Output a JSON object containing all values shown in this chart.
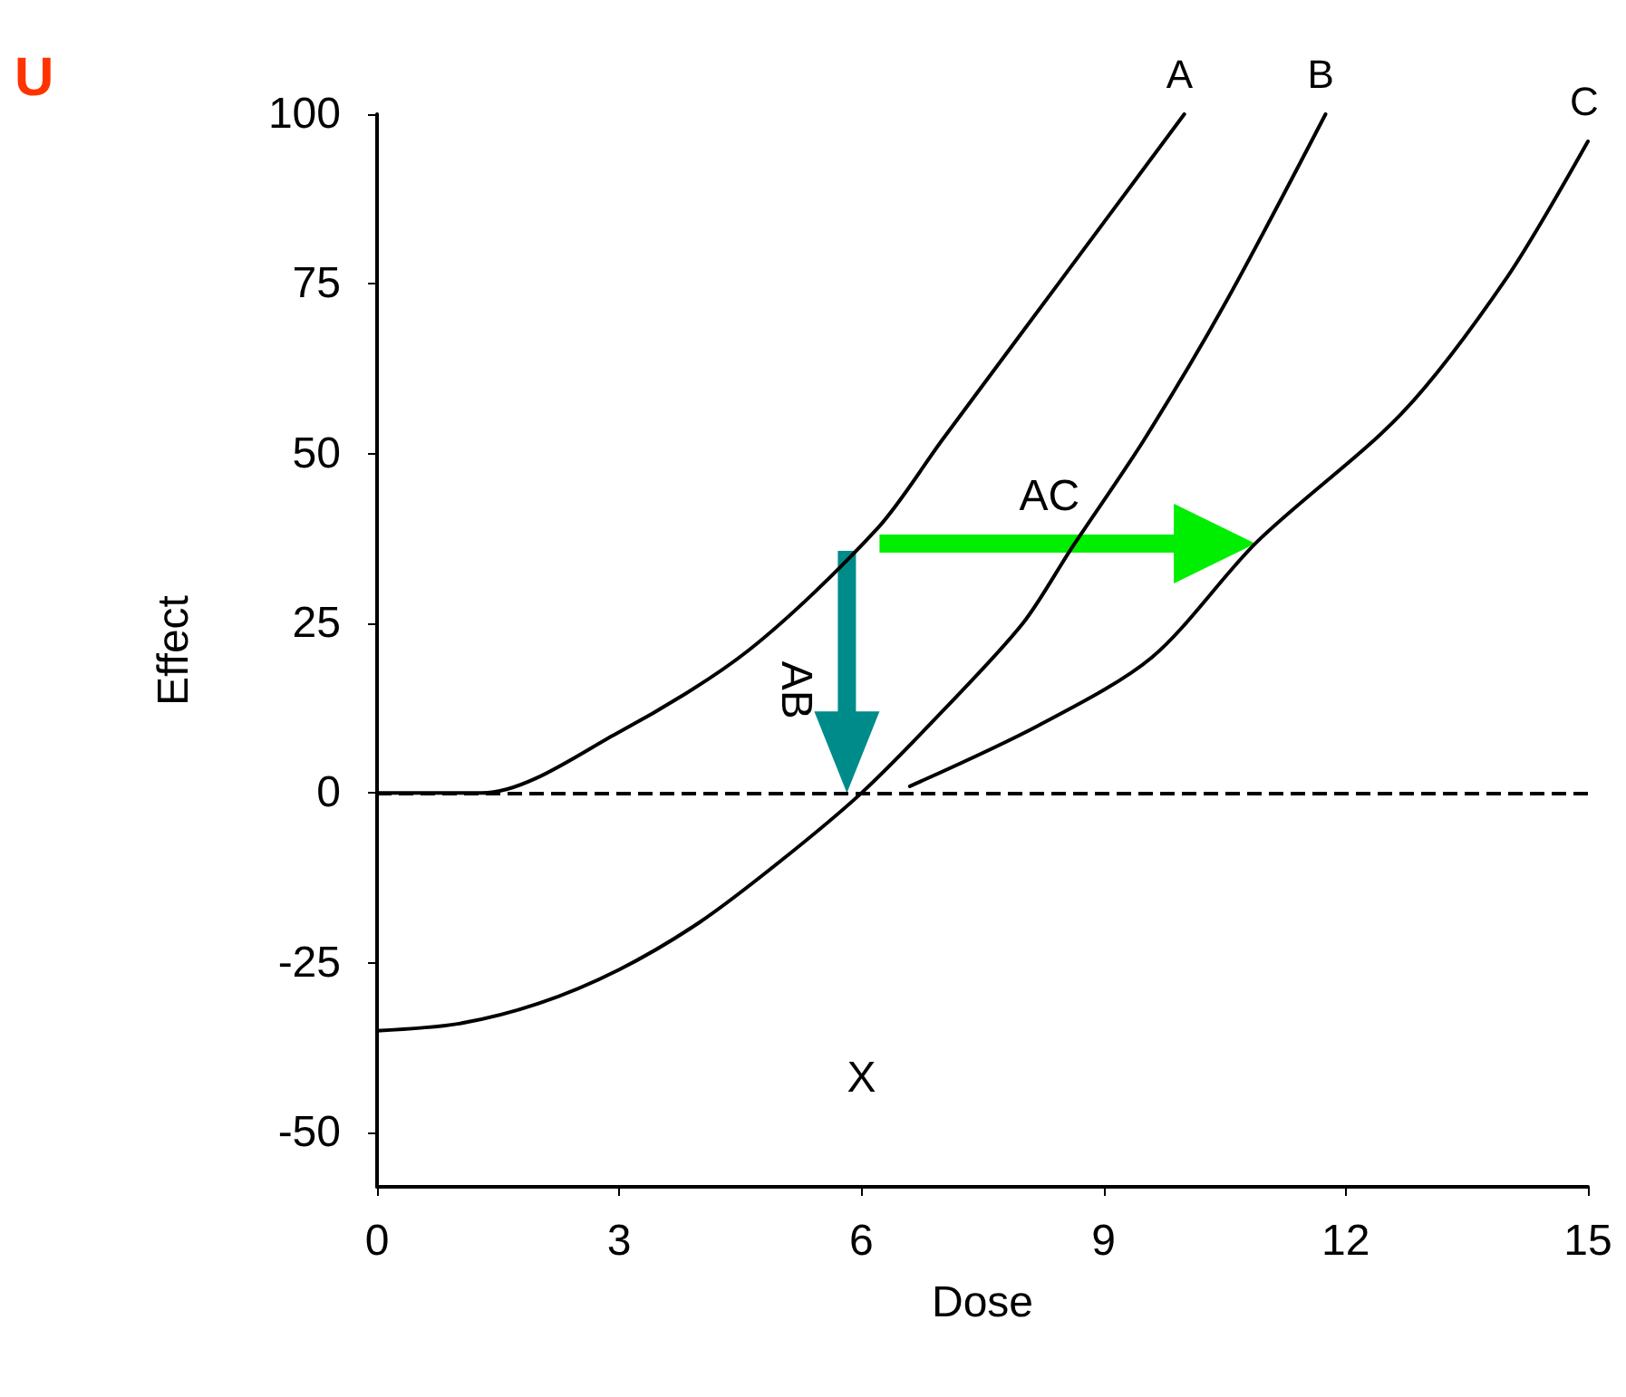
{
  "chart_data": {
    "type": "line",
    "xlabel": "Dose",
    "ylabel": "Effect",
    "xlim": [
      0,
      15
    ],
    "xticks": [
      0,
      3,
      6,
      9,
      12,
      15
    ],
    "ylim": [
      -58,
      100
    ],
    "yticks": [
      -50,
      -25,
      0,
      25,
      50,
      75,
      100
    ],
    "grid": false,
    "legend": false,
    "marker": "none",
    "line_style": "solid",
    "series": [
      {
        "name": "A",
        "color": "#000000",
        "x": [
          0,
          1.3,
          3,
          4.6,
          6.2,
          7,
          8,
          9,
          10
        ],
        "values": [
          0,
          0,
          9,
          21,
          39,
          52,
          68,
          84,
          100
        ]
      },
      {
        "name": "B",
        "color": "#000000",
        "x": [
          0,
          1,
          2,
          3,
          4,
          5,
          6,
          7,
          8,
          8.6,
          9.5,
          10.5,
          11.75
        ],
        "values": [
          -35,
          -34,
          -31,
          -26,
          -19,
          -10,
          0,
          12,
          25,
          36,
          52,
          72,
          100
        ]
      },
      {
        "name": "C",
        "color": "#000000",
        "x": [
          6.6,
          8.2,
          9.6,
          10.9,
          12.7,
          14,
          15
        ],
        "values": [
          1,
          10,
          20,
          37,
          56,
          76,
          96
        ]
      }
    ],
    "ref_lines": [
      {
        "axis": "y",
        "value": 0,
        "line_style": "dashed",
        "color": "#000000"
      }
    ],
    "annotations": [
      "AC",
      {
        "text": "AB",
        "x": 6,
        "y": 0
      },
      "X",
      "U"
    ]
  }
}
